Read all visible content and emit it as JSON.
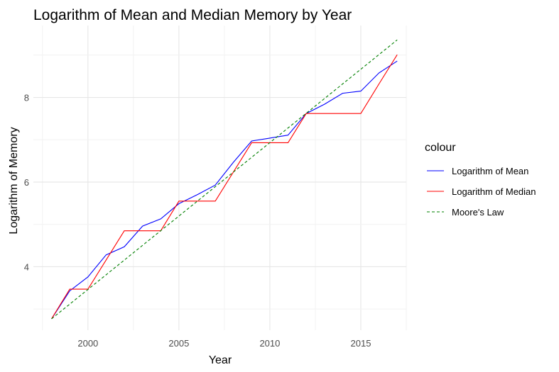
{
  "chart_data": {
    "type": "line",
    "title": "Logarithm of Mean and Median Memory by Year",
    "xlabel": "Year",
    "ylabel": "Logarithm of Memory",
    "xlim": [
      1997.0,
      2017.5
    ],
    "ylim": [
      2.5,
      9.7
    ],
    "x_ticks": [
      2000,
      2005,
      2010,
      2015
    ],
    "y_ticks": [
      4,
      6,
      8
    ],
    "grid": true,
    "legend_title": "colour",
    "legend_position": "right",
    "series": [
      {
        "name": "Logarithm of Mean",
        "color": "#0000FF",
        "dash": "solid",
        "x": [
          1998,
          1999,
          2000,
          2001,
          2002,
          2003,
          2004,
          2005,
          2006,
          2007,
          2008,
          2009,
          2010,
          2011,
          2012,
          2013,
          2014,
          2015,
          2016,
          2017
        ],
        "values": [
          2.77,
          3.43,
          3.76,
          4.28,
          4.47,
          4.96,
          5.13,
          5.49,
          5.7,
          5.93,
          6.47,
          6.97,
          7.04,
          7.11,
          7.62,
          7.84,
          8.1,
          8.15,
          8.58,
          8.86
        ]
      },
      {
        "name": "Logarithm of Median",
        "color": "#FF0000",
        "dash": "solid",
        "x": [
          1998,
          1999,
          2000,
          2001,
          2002,
          2003,
          2004,
          2005,
          2006,
          2007,
          2008,
          2009,
          2010,
          2011,
          2012,
          2013,
          2014,
          2015,
          2016,
          2017
        ],
        "values": [
          2.77,
          3.47,
          3.47,
          4.16,
          4.85,
          4.85,
          4.85,
          5.55,
          5.55,
          5.55,
          6.24,
          6.93,
          6.93,
          6.93,
          7.62,
          7.62,
          7.62,
          7.62,
          8.32,
          9.01
        ]
      },
      {
        "name": "Moore's Law",
        "color": "#008000",
        "dash": "dashed",
        "x": [
          1998,
          2017
        ],
        "values": [
          2.77,
          9.36
        ]
      }
    ]
  }
}
